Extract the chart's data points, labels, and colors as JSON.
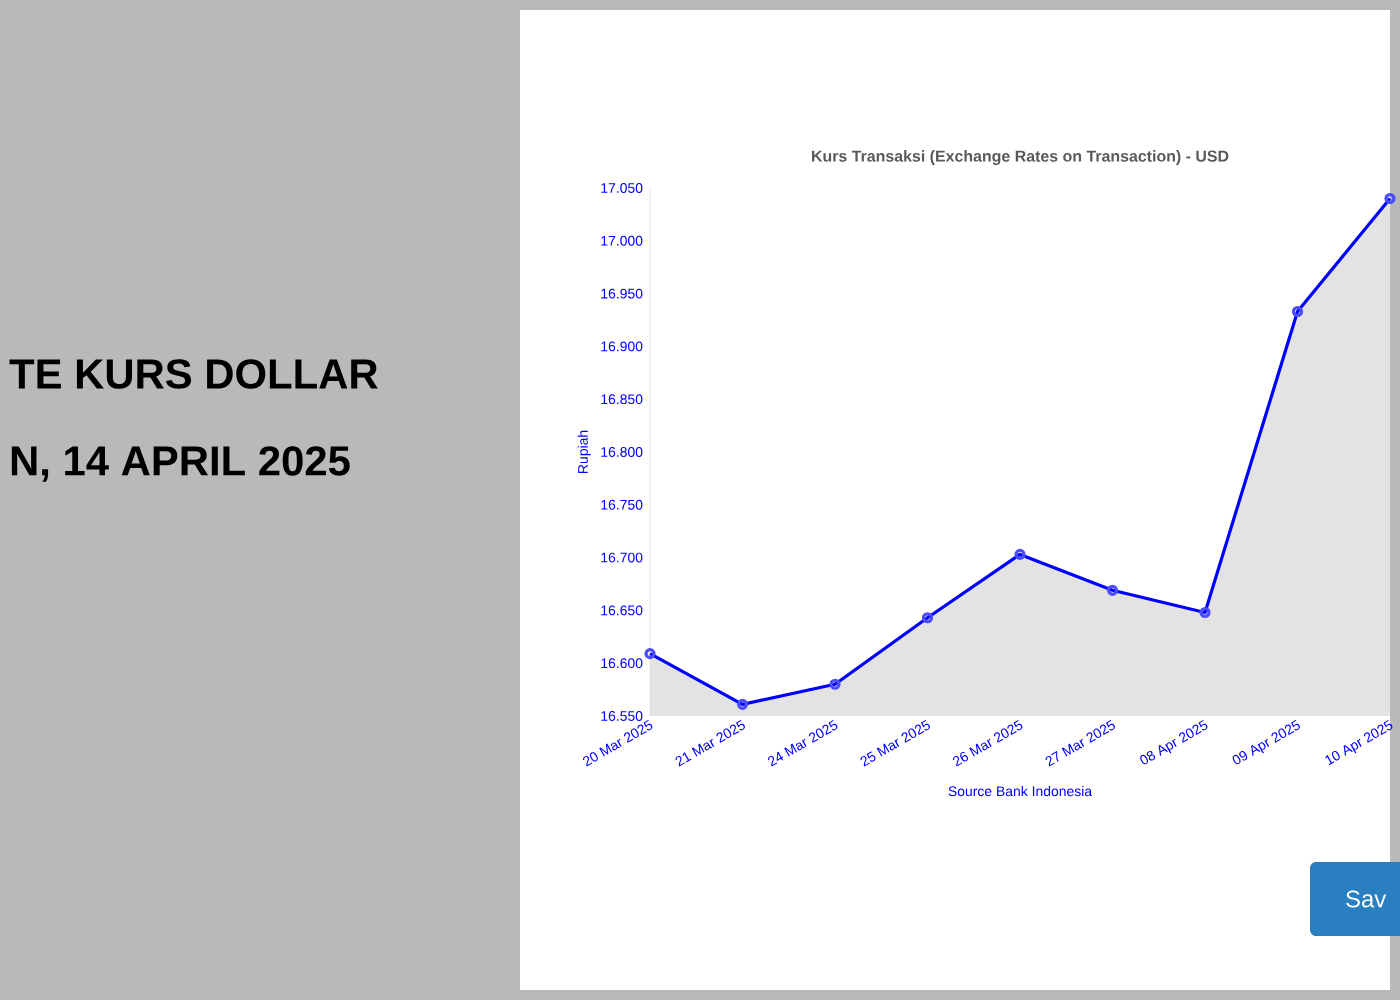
{
  "chart_data": {
    "type": "area",
    "title": "Kurs Transaksi (Exchange Rates on Transaction) - USD",
    "xlabel": "Source Bank Indonesia",
    "ylabel": "Rupiah",
    "categories": [
      "20 Mar 2025",
      "21 Mar 2025",
      "24 Mar 2025",
      "25 Mar 2025",
      "26 Mar 2025",
      "27 Mar 2025",
      "08 Apr 2025",
      "09 Apr 2025",
      "10 Apr 2025"
    ],
    "series": [
      {
        "color": "#0000ff",
        "values": [
          16609,
          16561,
          16580,
          16643,
          16703,
          16669,
          16648,
          16933,
          17040
        ]
      }
    ],
    "ylim": [
      16550,
      17050
    ],
    "yticks": [
      {
        "value": 16550,
        "label": "16.550"
      },
      {
        "value": 16600,
        "label": "16.600"
      },
      {
        "value": 16650,
        "label": "16.650"
      },
      {
        "value": 16700,
        "label": "16.700"
      },
      {
        "value": 16750,
        "label": "16.750"
      },
      {
        "value": 16800,
        "label": "16.800"
      },
      {
        "value": 16850,
        "label": "16.850"
      },
      {
        "value": 16900,
        "label": "16.900"
      },
      {
        "value": 16950,
        "label": "16.950"
      },
      {
        "value": 17000,
        "label": "17.000"
      },
      {
        "value": 17050,
        "label": "17.050"
      }
    ],
    "marker": "circle",
    "grid": false,
    "annotations": [
      "TE KURS DOLLAR",
      "N, 14 APRIL 2025",
      "Sav"
    ]
  }
}
